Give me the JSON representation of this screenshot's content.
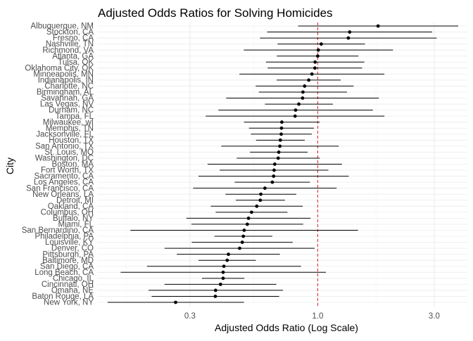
{
  "chart_data": {
    "type": "forest-plot",
    "title": "Adjusted Odds Ratios for Solving Homicides",
    "xlabel": "Adjusted Odds Ratio (Log Scale)",
    "ylabel": "City",
    "x_scale": "log",
    "xlim": [
      0.125,
      4.1
    ],
    "x_ticks": [
      0.3,
      1.0,
      3.0
    ],
    "x_tick_labels": [
      "0.3",
      "1.0",
      "3.0"
    ],
    "reference_line": {
      "x": 1.0,
      "color": "#e41a1c",
      "style": "dashed"
    },
    "colors": {
      "point": "#000000",
      "errorbar": "#000000",
      "grid_major": "#ebebeb",
      "grid_minor": "#f5f5f5"
    },
    "grid": true,
    "legend": "none",
    "points": [
      {
        "city": "Albuquerque, NM",
        "or": 1.767,
        "lo": 0.831,
        "hi": 3.761
      },
      {
        "city": "Stockton, CA",
        "or": 1.352,
        "lo": 0.621,
        "hi": 2.942
      },
      {
        "city": "Fresno, CA",
        "or": 1.335,
        "lo": 0.58,
        "hi": 3.071
      },
      {
        "city": "Nashville, TN",
        "or": 1.034,
        "lo": 0.685,
        "hi": 1.562
      },
      {
        "city": "Richmond, VA",
        "or": 1.006,
        "lo": 0.498,
        "hi": 2.033
      },
      {
        "city": "Atlanta, GA",
        "or": 1.0,
        "lo": 0.68,
        "hi": 1.468
      },
      {
        "city": "Tulsa, OK",
        "or": 0.976,
        "lo": 0.614,
        "hi": 1.552
      },
      {
        "city": "Oklahoma City, OK",
        "or": 0.974,
        "lo": 0.624,
        "hi": 1.52
      },
      {
        "city": "Minneapolis, MN",
        "or": 0.947,
        "lo": 0.478,
        "hi": 1.875
      },
      {
        "city": "Indianapolis, IN",
        "or": 0.919,
        "lo": 0.679,
        "hi": 1.242
      },
      {
        "city": "Charlotte, NC",
        "or": 0.884,
        "lo": 0.557,
        "hi": 1.403
      },
      {
        "city": "Birmingham, AL",
        "or": 0.87,
        "lo": 0.574,
        "hi": 1.318
      },
      {
        "city": "Savannah, GA",
        "or": 0.867,
        "lo": 0.422,
        "hi": 1.78
      },
      {
        "city": "Las Vegas, NV",
        "or": 0.837,
        "lo": 0.608,
        "hi": 1.154
      },
      {
        "city": "Durham, NC",
        "or": 0.812,
        "lo": 0.392,
        "hi": 1.683
      },
      {
        "city": "Tampa, FL",
        "or": 0.808,
        "lo": 0.348,
        "hi": 1.876
      },
      {
        "city": "Milwaukee, wI",
        "or": 0.713,
        "lo": 0.499,
        "hi": 1.02
      },
      {
        "city": "Memphis, TN",
        "or": 0.711,
        "lo": 0.523,
        "hi": 0.965
      },
      {
        "city": "Jacksonville, FL",
        "or": 0.709,
        "lo": 0.532,
        "hi": 0.946
      },
      {
        "city": "Houston, TX",
        "or": 0.703,
        "lo": 0.559,
        "hi": 0.885
      },
      {
        "city": "San Antonio, TX",
        "or": 0.7,
        "lo": 0.403,
        "hi": 1.219
      },
      {
        "city": "St. Louis, MO",
        "or": 0.693,
        "lo": 0.528,
        "hi": 0.909
      },
      {
        "city": "Washington, DC",
        "or": 0.689,
        "lo": 0.466,
        "hi": 1.02
      },
      {
        "city": "Boston, MA",
        "or": 0.667,
        "lo": 0.354,
        "hi": 1.257
      },
      {
        "city": "Fort Worth, TX",
        "or": 0.663,
        "lo": 0.397,
        "hi": 1.106
      },
      {
        "city": "Sacramento, CA",
        "or": 0.66,
        "lo": 0.325,
        "hi": 1.34
      },
      {
        "city": "Los Angeles, CA",
        "or": 0.652,
        "lo": 0.457,
        "hi": 0.929
      },
      {
        "city": "San Francisco, CA",
        "or": 0.608,
        "lo": 0.309,
        "hi": 1.195
      },
      {
        "city": "New Orleans, LA",
        "or": 0.585,
        "lo": 0.419,
        "hi": 0.817
      },
      {
        "city": "Detroit, MI",
        "or": 0.582,
        "lo": 0.462,
        "hi": 0.734
      },
      {
        "city": "Oakland, CA",
        "or": 0.563,
        "lo": 0.365,
        "hi": 0.868
      },
      {
        "city": "Columbus, OH",
        "or": 0.536,
        "lo": 0.382,
        "hi": 0.752
      },
      {
        "city": "Buffalo, NY",
        "or": 0.521,
        "lo": 0.29,
        "hi": 0.935
      },
      {
        "city": "Miami, FL",
        "or": 0.515,
        "lo": 0.304,
        "hi": 0.872
      },
      {
        "city": "San Bernardino, CA",
        "or": 0.5,
        "lo": 0.171,
        "hi": 1.462
      },
      {
        "city": "Philadelphia, PA",
        "or": 0.496,
        "lo": 0.378,
        "hi": 0.652
      },
      {
        "city": "Louisville, KY",
        "or": 0.491,
        "lo": 0.305,
        "hi": 0.79
      },
      {
        "city": "Denver, CO",
        "or": 0.479,
        "lo": 0.236,
        "hi": 0.971
      },
      {
        "city": "Pittsburgh, PA",
        "or": 0.431,
        "lo": 0.265,
        "hi": 0.7
      },
      {
        "city": "Baltimore, MD",
        "or": 0.426,
        "lo": 0.325,
        "hi": 0.558
      },
      {
        "city": "San Diego, CA",
        "or": 0.413,
        "lo": 0.2,
        "hi": 0.855
      },
      {
        "city": "Long Beach, CA",
        "or": 0.41,
        "lo": 0.156,
        "hi": 1.08
      },
      {
        "city": "Chicago, IL",
        "or": 0.41,
        "lo": 0.336,
        "hi": 0.501
      },
      {
        "city": "Cincinnati, OH",
        "or": 0.4,
        "lo": 0.236,
        "hi": 0.677
      },
      {
        "city": "Omaha, NE",
        "or": 0.382,
        "lo": 0.203,
        "hi": 0.721
      },
      {
        "city": "Baton Rouge, LA",
        "or": 0.381,
        "lo": 0.209,
        "hi": 0.695
      },
      {
        "city": "New York, NY",
        "or": 0.262,
        "lo": 0.138,
        "hi": 0.499
      }
    ]
  }
}
